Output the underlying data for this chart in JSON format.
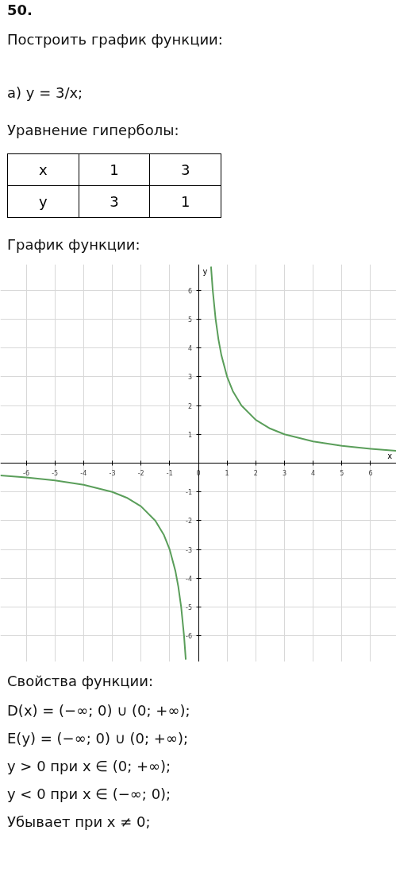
{
  "chart_data": {
    "type": "line",
    "title": "Построить график функции:",
    "subtitle": "а) y = 3/x;",
    "xlabel": "x",
    "ylabel": "y",
    "annotations": [
      "50.",
      "Уравнение гиперболы:",
      "x",
      "1",
      "3",
      "y",
      "3",
      "1",
      "График функции:",
      "Свойства функции:",
      "D(x) = (−∞; 0) ∪ (0; +∞);",
      "E(y) = (−∞; 0) ∪ (0; +∞);",
      "y > 0 при x ∈ (0; +∞);",
      "y < 0 при x ∈ (−∞; 0);",
      "Убывает при x ≠ 0;"
    ],
    "x": [
      -6.9,
      -6,
      -5,
      -4,
      -3,
      -2.5,
      -2,
      -1.5,
      -1.2,
      -1,
      -0.8,
      -0.7,
      -0.6,
      -0.5,
      -0.44,
      null,
      0.44,
      0.5,
      0.6,
      0.7,
      0.8,
      1,
      1.2,
      1.5,
      2,
      2.5,
      3,
      4,
      5,
      6,
      6.9
    ],
    "series": [
      {
        "color": "#5a9e5a",
        "values": [
          -0.43,
          -0.5,
          -0.6,
          -0.75,
          -1,
          -1.2,
          -1.5,
          -2,
          -2.5,
          -3,
          -3.75,
          -4.29,
          -5,
          -6,
          -6.82,
          null,
          6.82,
          6,
          5,
          4.29,
          3.75,
          3,
          2.5,
          2,
          1.5,
          1.2,
          1,
          0.75,
          0.6,
          0.5,
          0.43
        ]
      }
    ],
    "xlim": [
      -6.9,
      6.9
    ],
    "ylim": [
      -6.9,
      6.9
    ],
    "xticks": [
      -6,
      -5,
      -4,
      -3,
      -2,
      -1,
      0,
      1,
      2,
      3,
      4,
      5,
      6
    ],
    "yticks": [
      -6,
      -5,
      -4,
      -3,
      -2,
      -1,
      1,
      2,
      3,
      4,
      5,
      6
    ],
    "grid": true,
    "line_style": "solid",
    "marker": "none"
  }
}
